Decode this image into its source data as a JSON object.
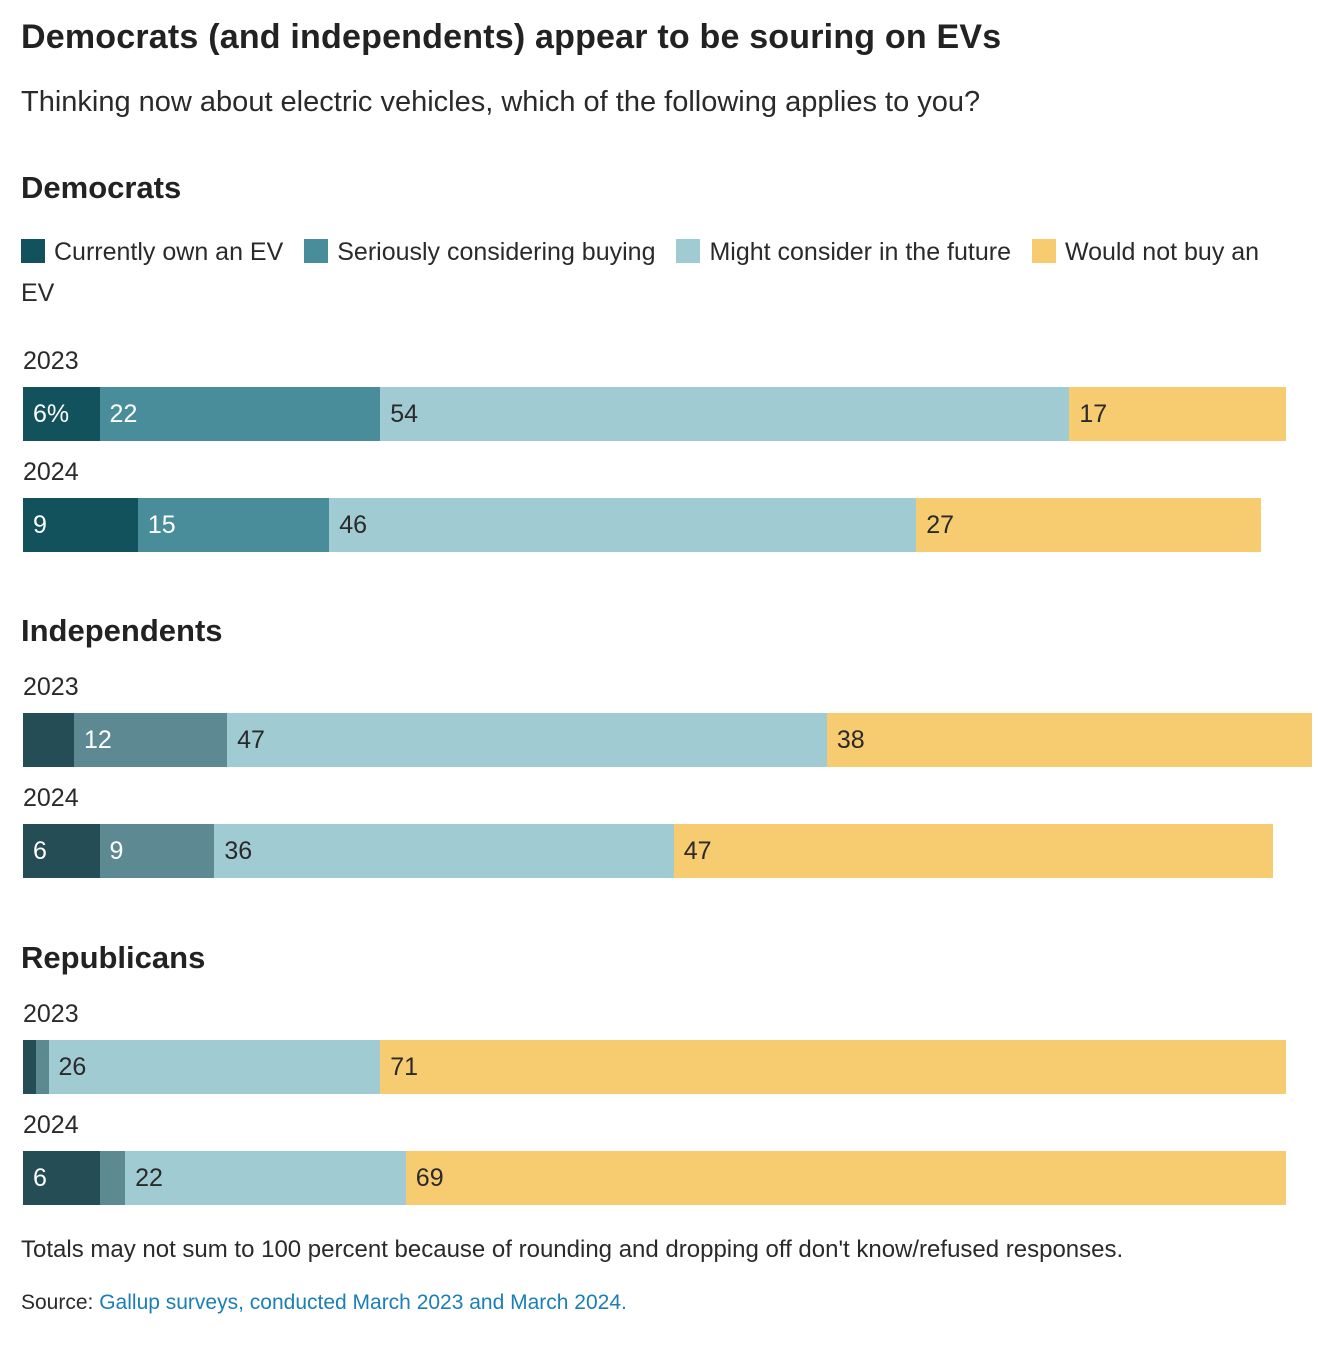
{
  "title": "Democrats (and independents) appear to be souring on EVs",
  "subtitle": "Thinking now about electric vehicles, which of the following applies to you?",
  "legend": [
    {
      "label": "Currently own an EV",
      "color": "#11525d"
    },
    {
      "label": "Seriously considering buying",
      "color": "#4a8d9a"
    },
    {
      "label": "Might consider in the future",
      "color": "#a1cbd2"
    },
    {
      "label": "Would not buy an EV",
      "color": "#f7cb70"
    }
  ],
  "chart_data": {
    "type": "bar",
    "orientation": "horizontal",
    "stacked": true,
    "unit": "percent",
    "groups": [
      {
        "name": "Democrats",
        "colors": [
          "#11525d",
          "#4a8d9a",
          "#a1cbd2",
          "#f7cb70"
        ],
        "rows": [
          {
            "year": "2023",
            "values": [
              6,
              22,
              54,
              17
            ],
            "labels": [
              "6%",
              "22",
              "54",
              "17"
            ]
          },
          {
            "year": "2024",
            "values": [
              9,
              15,
              46,
              27
            ],
            "labels": [
              "9",
              "15",
              "46",
              "27"
            ]
          }
        ]
      },
      {
        "name": "Independents",
        "colors": [
          "#254d56",
          "#5d8a92",
          "#a1cbd2",
          "#f7cb70"
        ],
        "rows": [
          {
            "year": "2023",
            "values": [
              4,
              12,
              47,
              38
            ],
            "labels": [
              "",
              "12",
              "47",
              "38"
            ]
          },
          {
            "year": "2024",
            "values": [
              6,
              9,
              36,
              47
            ],
            "labels": [
              "6",
              "9",
              "36",
              "47"
            ]
          }
        ]
      },
      {
        "name": "Republicans",
        "colors": [
          "#254d56",
          "#5d8a92",
          "#a1cbd2",
          "#f7cb70"
        ],
        "rows": [
          {
            "year": "2023",
            "values": [
              1,
              1,
              26,
              71
            ],
            "labels": [
              "",
              "",
              "26",
              "71"
            ]
          },
          {
            "year": "2024",
            "values": [
              6,
              2,
              22,
              69
            ],
            "labels": [
              "6",
              "",
              "22",
              "69"
            ]
          }
        ]
      }
    ],
    "xlim": [
      0,
      100
    ]
  },
  "footnote": "Totals may not sum to 100 percent because of rounding and dropping off don't know/refused responses.",
  "source": {
    "label": "Source:",
    "link_text": "Gallup surveys, conducted March 2023 and March 2024."
  }
}
